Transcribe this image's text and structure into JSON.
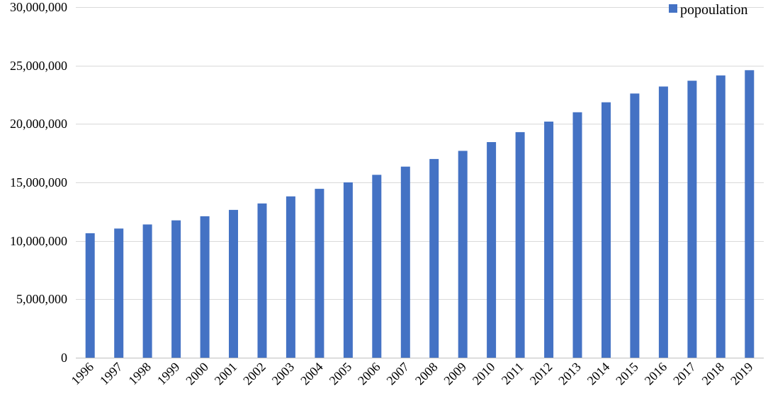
{
  "chart_data": {
    "type": "bar",
    "title": "",
    "xlabel": "",
    "ylabel": "",
    "categories": [
      "1996",
      "1997",
      "1998",
      "1999",
      "2000",
      "2001",
      "2002",
      "2003",
      "2004",
      "2005",
      "2006",
      "2007",
      "2008",
      "2009",
      "2010",
      "2011",
      "2012",
      "2013",
      "2014",
      "2015",
      "2016",
      "2017",
      "2018",
      "2019"
    ],
    "series": [
      {
        "name": "popoulation",
        "color": "#4472c4",
        "values": [
          10650000,
          11050000,
          11400000,
          11750000,
          12100000,
          12650000,
          13200000,
          13800000,
          14450000,
          15000000,
          15650000,
          16350000,
          17000000,
          17700000,
          18450000,
          19300000,
          20200000,
          21000000,
          21850000,
          22600000,
          23200000,
          23700000,
          24150000,
          24600000
        ]
      }
    ],
    "ylim": [
      0,
      30000000
    ],
    "yticks": [
      0,
      5000000,
      10000000,
      15000000,
      20000000,
      25000000,
      30000000
    ],
    "ytick_labels": [
      "0",
      "5,000,000",
      "10,000,000",
      "15,000,000",
      "20,000,000",
      "25,000,000",
      "30,000,000"
    ],
    "grid": true,
    "legend_position": "top-right",
    "xtick_rotation": "diagonal"
  }
}
